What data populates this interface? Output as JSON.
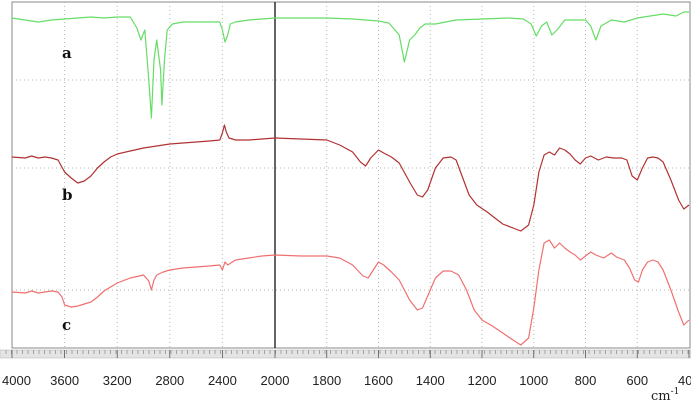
{
  "chart_data": {
    "type": "line",
    "title": "",
    "xlabel": "cm-1",
    "x_unit": {
      "base": "cm",
      "sup": "-1"
    },
    "xlim": [
      4000,
      400
    ],
    "x_reversed": true,
    "grid": true,
    "x_ticks": [
      4000,
      3600,
      3200,
      2800,
      2400,
      2000,
      1800,
      1600,
      1400,
      1200,
      1000,
      800,
      600,
      400
    ],
    "x_tick_labels": [
      "4000",
      "3600",
      "3200",
      "2800",
      "2400",
      "2000",
      "1800",
      "1600",
      "1400",
      "1200",
      "1000",
      "800",
      "600",
      "400"
    ],
    "series": [
      {
        "name": "a",
        "color": "#66dd66",
        "points": [
          [
            4000,
            18
          ],
          [
            3800,
            22
          ],
          [
            3700,
            20
          ],
          [
            3600,
            19
          ],
          [
            3500,
            18
          ],
          [
            3400,
            17
          ],
          [
            3300,
            18
          ],
          [
            3200,
            17
          ],
          [
            3100,
            17
          ],
          [
            3050,
            28
          ],
          [
            3020,
            40
          ],
          [
            2990,
            30
          ],
          [
            2960,
            80
          ],
          [
            2940,
            118
          ],
          [
            2920,
            60
          ],
          [
            2900,
            40
          ],
          [
            2870,
            70
          ],
          [
            2860,
            105
          ],
          [
            2840,
            60
          ],
          [
            2820,
            30
          ],
          [
            2780,
            24
          ],
          [
            2700,
            22
          ],
          [
            2600,
            22
          ],
          [
            2500,
            22
          ],
          [
            2420,
            22
          ],
          [
            2400,
            30
          ],
          [
            2380,
            42
          ],
          [
            2360,
            35
          ],
          [
            2340,
            24
          ],
          [
            2300,
            22
          ],
          [
            2200,
            20
          ],
          [
            2100,
            19
          ],
          [
            2000,
            18
          ],
          [
            1900,
            18
          ],
          [
            1800,
            18
          ],
          [
            1700,
            19
          ],
          [
            1650,
            20
          ],
          [
            1600,
            21
          ],
          [
            1560,
            23
          ],
          [
            1520,
            35
          ],
          [
            1500,
            62
          ],
          [
            1480,
            40
          ],
          [
            1460,
            35
          ],
          [
            1440,
            28
          ],
          [
            1420,
            24
          ],
          [
            1380,
            24
          ],
          [
            1300,
            20
          ],
          [
            1200,
            19
          ],
          [
            1100,
            18
          ],
          [
            1040,
            19
          ],
          [
            1010,
            24
          ],
          [
            990,
            36
          ],
          [
            970,
            26
          ],
          [
            950,
            22
          ],
          [
            930,
            35
          ],
          [
            910,
            30
          ],
          [
            880,
            20
          ],
          [
            840,
            20
          ],
          [
            800,
            20
          ],
          [
            780,
            26
          ],
          [
            760,
            40
          ],
          [
            740,
            26
          ],
          [
            700,
            20
          ],
          [
            650,
            22
          ],
          [
            600,
            18
          ],
          [
            550,
            16
          ],
          [
            500,
            14
          ],
          [
            450,
            16
          ],
          [
            420,
            12
          ],
          [
            400,
            12
          ]
        ]
      },
      {
        "name": "b",
        "color": "#b23232",
        "points": [
          [
            4000,
            157
          ],
          [
            3900,
            158
          ],
          [
            3850,
            156
          ],
          [
            3800,
            158
          ],
          [
            3750,
            157
          ],
          [
            3700,
            158
          ],
          [
            3650,
            160
          ],
          [
            3600,
            172
          ],
          [
            3550,
            178
          ],
          [
            3500,
            183
          ],
          [
            3450,
            181
          ],
          [
            3400,
            176
          ],
          [
            3350,
            168
          ],
          [
            3300,
            162
          ],
          [
            3250,
            157
          ],
          [
            3200,
            154
          ],
          [
            3100,
            151
          ],
          [
            3000,
            148
          ],
          [
            2900,
            146
          ],
          [
            2800,
            144
          ],
          [
            2700,
            143
          ],
          [
            2600,
            142
          ],
          [
            2500,
            141
          ],
          [
            2420,
            140
          ],
          [
            2400,
            133
          ],
          [
            2385,
            125
          ],
          [
            2370,
            132
          ],
          [
            2350,
            138
          ],
          [
            2300,
            140
          ],
          [
            2200,
            140
          ],
          [
            2100,
            139
          ],
          [
            2000,
            138
          ],
          [
            1900,
            139
          ],
          [
            1800,
            140
          ],
          [
            1750,
            145
          ],
          [
            1700,
            152
          ],
          [
            1670,
            162
          ],
          [
            1650,
            166
          ],
          [
            1630,
            158
          ],
          [
            1600,
            150
          ],
          [
            1580,
            153
          ],
          [
            1550,
            157
          ],
          [
            1520,
            163
          ],
          [
            1480,
            182
          ],
          [
            1450,
            195
          ],
          [
            1430,
            197
          ],
          [
            1410,
            190
          ],
          [
            1380,
            168
          ],
          [
            1350,
            158
          ],
          [
            1320,
            157
          ],
          [
            1300,
            160
          ],
          [
            1280,
            174
          ],
          [
            1250,
            195
          ],
          [
            1220,
            205
          ],
          [
            1180,
            212
          ],
          [
            1150,
            218
          ],
          [
            1120,
            224
          ],
          [
            1080,
            228
          ],
          [
            1050,
            231
          ],
          [
            1020,
            225
          ],
          [
            1000,
            205
          ],
          [
            980,
            172
          ],
          [
            960,
            155
          ],
          [
            940,
            152
          ],
          [
            920,
            155
          ],
          [
            900,
            148
          ],
          [
            880,
            150
          ],
          [
            860,
            154
          ],
          [
            840,
            160
          ],
          [
            820,
            164
          ],
          [
            800,
            158
          ],
          [
            780,
            156
          ],
          [
            750,
            160
          ],
          [
            720,
            157
          ],
          [
            690,
            158
          ],
          [
            660,
            158
          ],
          [
            640,
            160
          ],
          [
            620,
            176
          ],
          [
            600,
            180
          ],
          [
            580,
            168
          ],
          [
            560,
            158
          ],
          [
            540,
            157
          ],
          [
            520,
            158
          ],
          [
            500,
            162
          ],
          [
            470,
            180
          ],
          [
            440,
            200
          ],
          [
            420,
            209
          ],
          [
            400,
            205
          ]
        ]
      },
      {
        "name": "c",
        "color": "#f07070",
        "points": [
          [
            4000,
            292
          ],
          [
            3900,
            293
          ],
          [
            3850,
            291
          ],
          [
            3800,
            293
          ],
          [
            3700,
            291
          ],
          [
            3650,
            292
          ],
          [
            3620,
            297
          ],
          [
            3600,
            305
          ],
          [
            3550,
            307
          ],
          [
            3500,
            306
          ],
          [
            3450,
            304
          ],
          [
            3400,
            302
          ],
          [
            3350,
            297
          ],
          [
            3300,
            291
          ],
          [
            3250,
            287
          ],
          [
            3200,
            283
          ],
          [
            3100,
            278
          ],
          [
            3000,
            275
          ],
          [
            2960,
            281
          ],
          [
            2940,
            290
          ],
          [
            2920,
            280
          ],
          [
            2900,
            275
          ],
          [
            2850,
            272
          ],
          [
            2800,
            270
          ],
          [
            2700,
            268
          ],
          [
            2600,
            267
          ],
          [
            2500,
            266
          ],
          [
            2420,
            265
          ],
          [
            2400,
            270
          ],
          [
            2380,
            262
          ],
          [
            2360,
            265
          ],
          [
            2300,
            260
          ],
          [
            2200,
            258
          ],
          [
            2100,
            256
          ],
          [
            2000,
            255
          ],
          [
            1900,
            256
          ],
          [
            1800,
            256
          ],
          [
            1750,
            258
          ],
          [
            1700,
            265
          ],
          [
            1660,
            276
          ],
          [
            1640,
            278
          ],
          [
            1620,
            270
          ],
          [
            1600,
            262
          ],
          [
            1580,
            265
          ],
          [
            1550,
            272
          ],
          [
            1520,
            280
          ],
          [
            1480,
            300
          ],
          [
            1450,
            310
          ],
          [
            1430,
            308
          ],
          [
            1410,
            296
          ],
          [
            1380,
            278
          ],
          [
            1350,
            271
          ],
          [
            1320,
            271
          ],
          [
            1290,
            275
          ],
          [
            1260,
            290
          ],
          [
            1230,
            310
          ],
          [
            1200,
            320
          ],
          [
            1160,
            326
          ],
          [
            1120,
            333
          ],
          [
            1080,
            340
          ],
          [
            1050,
            345
          ],
          [
            1020,
            338
          ],
          [
            1000,
            308
          ],
          [
            980,
            270
          ],
          [
            960,
            243
          ],
          [
            940,
            240
          ],
          [
            920,
            248
          ],
          [
            900,
            243
          ],
          [
            880,
            248
          ],
          [
            860,
            252
          ],
          [
            840,
            255
          ],
          [
            820,
            260
          ],
          [
            800,
            256
          ],
          [
            780,
            252
          ],
          [
            760,
            255
          ],
          [
            730,
            258
          ],
          [
            700,
            253
          ],
          [
            680,
            257
          ],
          [
            650,
            260
          ],
          [
            630,
            268
          ],
          [
            610,
            280
          ],
          [
            595,
            282
          ],
          [
            580,
            270
          ],
          [
            560,
            262
          ],
          [
            540,
            260
          ],
          [
            520,
            262
          ],
          [
            500,
            270
          ],
          [
            470,
            290
          ],
          [
            440,
            312
          ],
          [
            420,
            325
          ],
          [
            400,
            320
          ]
        ]
      }
    ],
    "curve_labels": [
      "a",
      "b",
      "c"
    ]
  }
}
